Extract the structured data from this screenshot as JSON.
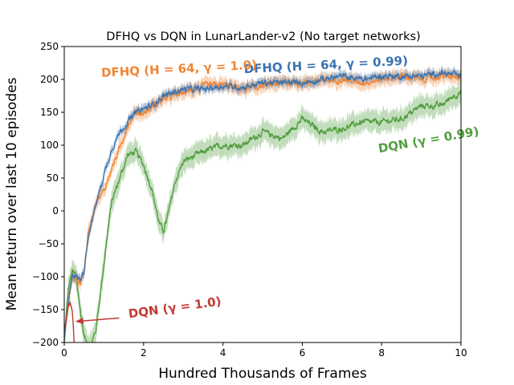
{
  "chart_data": {
    "type": "line",
    "title": "DFHQ vs DQN in LunarLander-v2 (No target networks)",
    "xlabel": "Hundred Thousands of Frames",
    "ylabel": "Mean return over last 10 episodes",
    "xlim": [
      0,
      10
    ],
    "ylim": [
      -200,
      250
    ],
    "xticks": [
      0,
      2,
      4,
      6,
      8,
      10
    ],
    "yticks": [
      -200,
      -150,
      -100,
      -50,
      0,
      50,
      100,
      150,
      200,
      250
    ],
    "grid": false,
    "series": [
      {
        "name": "DFHQ (H = 64, γ = 0.99)",
        "color": "#3b73b0",
        "band": 7,
        "x": [
          0,
          0.2,
          0.4,
          0.5,
          0.6,
          0.8,
          1.0,
          1.2,
          1.4,
          1.6,
          1.8,
          2.0,
          2.2,
          2.5,
          3.0,
          3.5,
          4.0,
          4.5,
          5.0,
          5.5,
          6.0,
          6.5,
          7.0,
          7.5,
          8.0,
          8.5,
          9.0,
          9.5,
          10.0
        ],
        "y": [
          -195,
          -95,
          -105,
          -90,
          -40,
          10,
          55,
          95,
          120,
          135,
          150,
          155,
          160,
          175,
          185,
          185,
          190,
          188,
          195,
          195,
          195,
          200,
          205,
          200,
          205,
          205,
          205,
          210,
          205
        ]
      },
      {
        "name": "DFHQ (H = 64, γ = 1.0)",
        "color": "#ef8636",
        "band": 10,
        "x": [
          0,
          0.2,
          0.4,
          0.5,
          0.6,
          0.8,
          1.0,
          1.2,
          1.4,
          1.6,
          1.8,
          2.0,
          2.2,
          2.5,
          3.0,
          3.5,
          4.0,
          4.5,
          5.0,
          5.5,
          6.0,
          6.5,
          7.0,
          7.5,
          8.0,
          8.5,
          9.0,
          9.5,
          10.0
        ],
        "y": [
          -192,
          -98,
          -110,
          -92,
          -35,
          15,
          30,
          65,
          95,
          130,
          150,
          148,
          158,
          170,
          180,
          190,
          192,
          185,
          190,
          195,
          195,
          198,
          200,
          195,
          200,
          205,
          200,
          205,
          202
        ]
      },
      {
        "name": "DQN (γ = 0.99)",
        "color": "#519e3e",
        "band": 16,
        "x": [
          0,
          0.1,
          0.2,
          0.3,
          0.4,
          0.5,
          0.6,
          0.7,
          0.8,
          0.9,
          1.0,
          1.1,
          1.2,
          1.4,
          1.6,
          1.8,
          2.0,
          2.2,
          2.4,
          2.5,
          2.6,
          2.8,
          3.0,
          3.5,
          4.0,
          4.5,
          5.0,
          5.5,
          6.0,
          6.5,
          7.0,
          7.5,
          8.0,
          8.5,
          9.0,
          9.5,
          9.8,
          10.0
        ],
        "y": [
          -200,
          -120,
          -92,
          -100,
          -150,
          -190,
          -205,
          -200,
          -180,
          -130,
          -80,
          -30,
          15,
          50,
          85,
          90,
          70,
          35,
          -20,
          -30,
          -10,
          45,
          75,
          90,
          100,
          100,
          120,
          110,
          140,
          120,
          125,
          135,
          135,
          140,
          160,
          160,
          175,
          180
        ]
      },
      {
        "name": "DQN (γ = 1.0)",
        "color": "#c13a33",
        "band": 4,
        "x": [
          0,
          0.05,
          0.1,
          0.15,
          0.2,
          0.23,
          0.25
        ],
        "y": [
          -180,
          -165,
          -145,
          -140,
          -150,
          -175,
          -200
        ]
      }
    ],
    "annotations": [
      {
        "text": "DFHQ (H = 64, γ = 0.99)",
        "series": 0,
        "x": 6.6,
        "y": 216,
        "rotate": -3
      },
      {
        "text": "DFHQ (H = 64, γ = 1.0)",
        "series": 1,
        "x": 2.9,
        "y": 210,
        "rotate": -3
      },
      {
        "text": "DQN (γ = 0.99)",
        "series": 2,
        "x": 9.2,
        "y": 102,
        "rotate": -10
      },
      {
        "text": "DQN (γ = 1.0)",
        "series": 3,
        "x": 2.8,
        "y": -153,
        "rotate": -8,
        "arrow_to": [
          0.3,
          -168
        ]
      }
    ]
  }
}
